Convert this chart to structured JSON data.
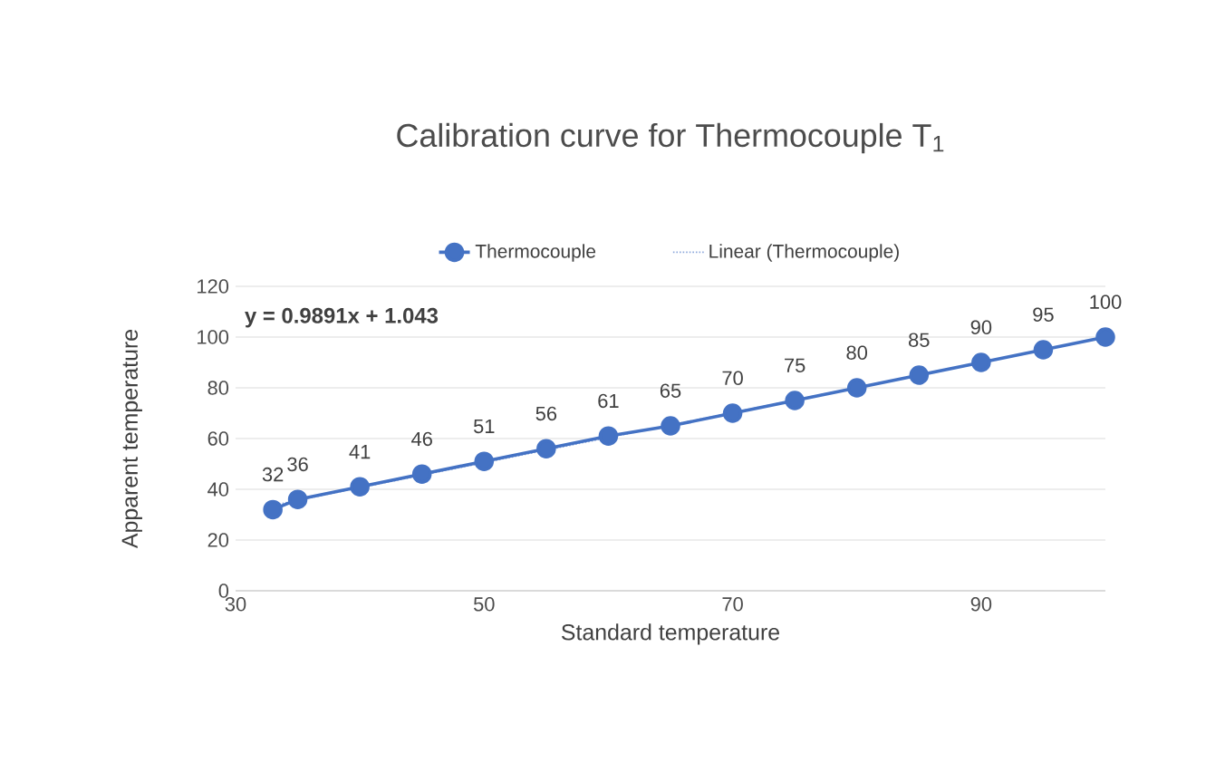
{
  "chart_data": {
    "type": "line",
    "title": "Calibration curve for Thermocouple T$_{1}$",
    "xlabel": "Standard temperature",
    "ylabel": "Apparent temperature",
    "series": [
      {
        "name": "Thermocouple",
        "color": "#4472c4",
        "marker": "circle",
        "line_style": "solid",
        "x": [
          33,
          35,
          40,
          45,
          50,
          55,
          60,
          65,
          70,
          75,
          80,
          85,
          90,
          95,
          100
        ],
        "values": [
          32,
          36,
          41,
          46,
          51,
          56,
          61,
          65,
          70,
          75,
          80,
          85,
          90,
          95,
          100
        ],
        "value_labels": [
          "32",
          "36",
          "41",
          "46",
          "51",
          "56",
          "61",
          "65",
          "70",
          "75",
          "80",
          "85",
          "90",
          "95",
          "100"
        ]
      },
      {
        "name": "Linear (Thermocouple)",
        "color": "#8faadc",
        "marker": "none",
        "line_style": "dotted",
        "x": [
          33,
          100
        ],
        "values": [
          33.7,
          99.9
        ]
      }
    ],
    "annotations": [
      "y = 0.9891x + 1.043"
    ],
    "xlim": [
      30,
      100
    ],
    "xticks": [
      30,
      50,
      70,
      90
    ],
    "ylim": [
      0,
      120
    ],
    "yticks": [
      0,
      20,
      40,
      60,
      80,
      100,
      120
    ],
    "grid": "y",
    "legend": "top"
  }
}
